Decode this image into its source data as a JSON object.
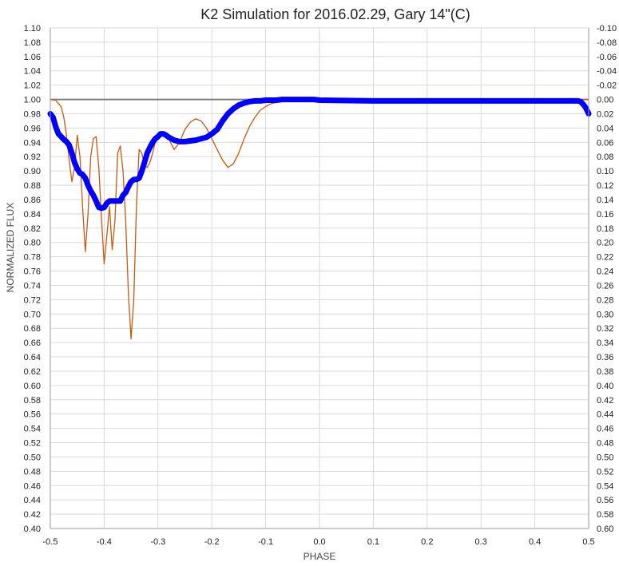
{
  "chart_data": {
    "type": "line",
    "title": "K2 Simulation for 2016.02.29, Gary 14\"(C)",
    "xlabel": "PHASE",
    "ylabel": "NORMALIZED FLUX",
    "xlim": [
      -0.5,
      0.5
    ],
    "ylim": [
      0.4,
      1.1
    ],
    "y2lim": [
      -0.1,
      0.6
    ],
    "y2_inverted": true,
    "grid": true,
    "x_ticks": [
      "-0.5",
      "-0.4",
      "-0.3",
      "-0.2",
      "-0.1",
      "0.0",
      "0.1",
      "0.2",
      "0.3",
      "0.4",
      "0.5"
    ],
    "y_ticks": [
      "0.40",
      "0.42",
      "0.44",
      "0.46",
      "0.48",
      "0.50",
      "0.52",
      "0.54",
      "0.56",
      "0.58",
      "0.60",
      "0.62",
      "0.64",
      "0.66",
      "0.68",
      "0.70",
      "0.72",
      "0.74",
      "0.76",
      "0.78",
      "0.80",
      "0.82",
      "0.84",
      "0.86",
      "0.88",
      "0.90",
      "0.92",
      "0.94",
      "0.96",
      "0.98",
      "1.00",
      "1.02",
      "1.04",
      "1.06",
      "1.08",
      "1.10"
    ],
    "y2_ticks": [
      "-0.10",
      "-0.08",
      "-0.06",
      "-0.04",
      "-0.02",
      "0.00",
      "0.02",
      "0.04",
      "0.06",
      "0.08",
      "0.10",
      "0.12",
      "0.14",
      "0.16",
      "0.18",
      "0.20",
      "0.22",
      "0.24",
      "0.26",
      "0.28",
      "0.30",
      "0.32",
      "0.34",
      "0.36",
      "0.38",
      "0.40",
      "0.42",
      "0.44",
      "0.46",
      "0.48",
      "0.50",
      "0.52",
      "0.54",
      "0.56",
      "0.58",
      "0.60"
    ],
    "reference_line": {
      "y": 1.0,
      "color": "#7f7f7f"
    },
    "series": [
      {
        "color": "#c55a11",
        "style": "thin-line",
        "x": [
          -0.5,
          -0.49,
          -0.48,
          -0.475,
          -0.47,
          -0.465,
          -0.46,
          -0.455,
          -0.45,
          -0.445,
          -0.44,
          -0.435,
          -0.43,
          -0.425,
          -0.42,
          -0.415,
          -0.41,
          -0.405,
          -0.4,
          -0.395,
          -0.39,
          -0.385,
          -0.38,
          -0.375,
          -0.37,
          -0.365,
          -0.36,
          -0.355,
          -0.35,
          -0.345,
          -0.34,
          -0.335,
          -0.33,
          -0.325,
          -0.32,
          -0.315,
          -0.31,
          -0.305,
          -0.3,
          -0.29,
          -0.28,
          -0.27,
          -0.26,
          -0.25,
          -0.24,
          -0.23,
          -0.22,
          -0.21,
          -0.2,
          -0.19,
          -0.18,
          -0.17,
          -0.16,
          -0.15,
          -0.14,
          -0.13,
          -0.12,
          -0.11,
          -0.1,
          -0.09,
          -0.08,
          -0.07,
          -0.06,
          -0.05,
          -0.04,
          -0.03,
          -0.02,
          -0.01,
          0.0,
          0.1,
          0.2,
          0.3,
          0.4,
          0.5
        ],
        "y": [
          1.0,
          0.999,
          0.99,
          0.975,
          0.95,
          0.915,
          0.885,
          0.905,
          0.95,
          0.92,
          0.85,
          0.787,
          0.84,
          0.92,
          0.945,
          0.948,
          0.905,
          0.835,
          0.77,
          0.81,
          0.85,
          0.79,
          0.83,
          0.925,
          0.935,
          0.9,
          0.83,
          0.73,
          0.665,
          0.72,
          0.85,
          0.93,
          0.925,
          0.908,
          0.905,
          0.912,
          0.925,
          0.94,
          0.95,
          0.955,
          0.945,
          0.93,
          0.94,
          0.958,
          0.968,
          0.973,
          0.97,
          0.96,
          0.945,
          0.93,
          0.915,
          0.905,
          0.91,
          0.925,
          0.945,
          0.962,
          0.975,
          0.985,
          0.99,
          0.994,
          0.996,
          0.998,
          0.999,
          0.999,
          1.0,
          1.0,
          1.0,
          1.0,
          1.0,
          1.0,
          1.0,
          1.0,
          1.0,
          1.0
        ]
      },
      {
        "color": "#0000ff",
        "style": "thick-markers",
        "x": [
          -0.5,
          -0.495,
          -0.49,
          -0.485,
          -0.48,
          -0.475,
          -0.47,
          -0.465,
          -0.46,
          -0.455,
          -0.45,
          -0.445,
          -0.44,
          -0.435,
          -0.43,
          -0.425,
          -0.42,
          -0.415,
          -0.41,
          -0.405,
          -0.4,
          -0.395,
          -0.39,
          -0.385,
          -0.38,
          -0.375,
          -0.37,
          -0.365,
          -0.36,
          -0.355,
          -0.35,
          -0.345,
          -0.34,
          -0.335,
          -0.33,
          -0.325,
          -0.32,
          -0.315,
          -0.31,
          -0.305,
          -0.3,
          -0.295,
          -0.29,
          -0.285,
          -0.28,
          -0.27,
          -0.26,
          -0.25,
          -0.24,
          -0.23,
          -0.22,
          -0.21,
          -0.2,
          -0.19,
          -0.18,
          -0.17,
          -0.16,
          -0.15,
          -0.14,
          -0.13,
          -0.12,
          -0.11,
          -0.1,
          -0.09,
          -0.08,
          -0.07,
          -0.06,
          -0.05,
          -0.04,
          -0.03,
          -0.02,
          -0.01,
          0.0,
          0.1,
          0.2,
          0.3,
          0.4,
          0.46,
          0.47,
          0.48,
          0.485,
          0.49,
          0.495,
          0.5
        ],
        "y": [
          0.98,
          0.975,
          0.962,
          0.952,
          0.948,
          0.944,
          0.941,
          0.936,
          0.925,
          0.912,
          0.903,
          0.897,
          0.895,
          0.89,
          0.88,
          0.872,
          0.866,
          0.858,
          0.849,
          0.848,
          0.849,
          0.855,
          0.858,
          0.858,
          0.858,
          0.858,
          0.858,
          0.866,
          0.87,
          0.878,
          0.885,
          0.888,
          0.888,
          0.89,
          0.9,
          0.912,
          0.925,
          0.933,
          0.94,
          0.945,
          0.948,
          0.952,
          0.952,
          0.95,
          0.947,
          0.943,
          0.941,
          0.941,
          0.942,
          0.943,
          0.945,
          0.947,
          0.952,
          0.958,
          0.97,
          0.98,
          0.987,
          0.992,
          0.995,
          0.997,
          0.998,
          0.998,
          0.999,
          0.999,
          0.999,
          1.0,
          1.0,
          1.0,
          1.0,
          1.0,
          1.0,
          1.0,
          0.999,
          0.998,
          0.998,
          0.998,
          0.998,
          0.998,
          0.998,
          0.998,
          0.997,
          0.993,
          0.988,
          0.98
        ]
      }
    ]
  }
}
